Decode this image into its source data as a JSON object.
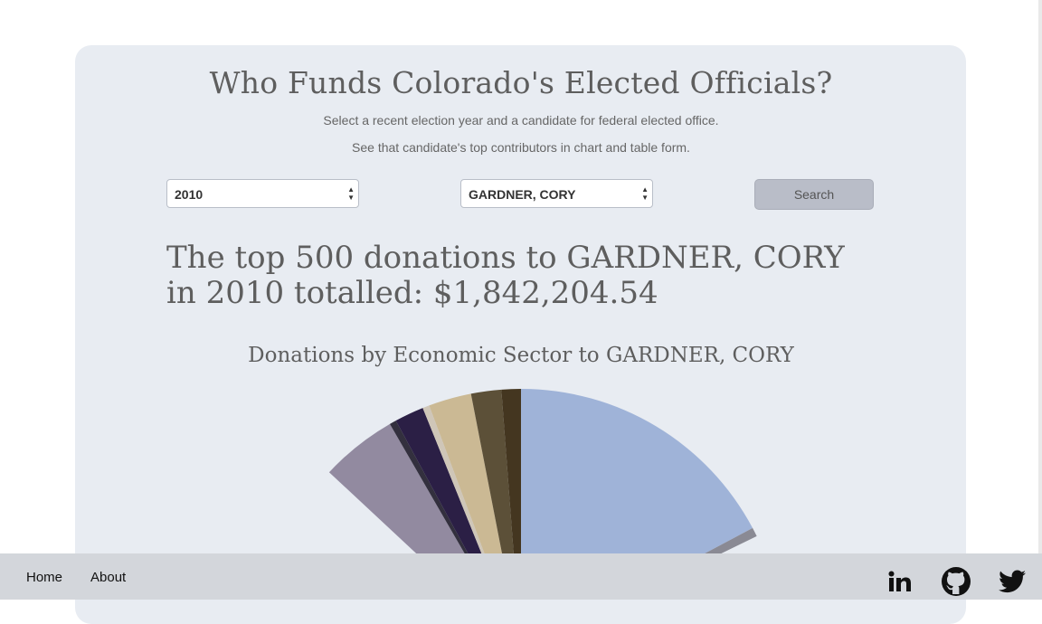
{
  "header": {
    "title": "Who Funds Colorado's Elected Officials?",
    "subtitle_1": "Select a recent election year and a candidate for federal elected office.",
    "subtitle_2": "See that candidate's top contributors in chart and table form."
  },
  "controls": {
    "year_value": "2010",
    "candidate_value": "GARDNER, CORY",
    "search_label": "Search"
  },
  "summary": {
    "headline": "The top 500 donations to GARDNER, CORY in 2010 totalled: $1,842,204.54"
  },
  "chart_data": {
    "type": "pie",
    "title": "Donations by Economic Sector to GARDNER, CORY",
    "slice_colors": [
      "#9fb3d8",
      "#8a8a94",
      "#928aa0",
      "#33303e",
      "#2b1f45",
      "#cfc6b8",
      "#cbb994",
      "#5c5038",
      "#443620"
    ],
    "note": "Donut chart partially visible; only top portion shown in viewport"
  },
  "footer": {
    "home_label": "Home",
    "about_label": "About",
    "icons": [
      "linkedin-icon",
      "github-icon",
      "twitter-icon"
    ]
  }
}
